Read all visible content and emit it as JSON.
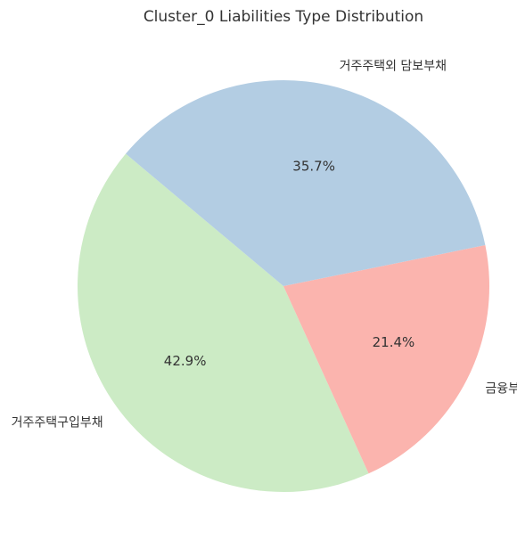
{
  "chart_data": {
    "type": "pie",
    "title": "Cluster_0 Liabilities Type Distribution",
    "start_angle_deg": 140,
    "direction": "counterclockwise",
    "slices": [
      {
        "label": "거주주택구입부채",
        "value": 42.9,
        "pct_label": "42.9%",
        "color": "#ccebc5"
      },
      {
        "label": "금융부채",
        "value": 21.4,
        "pct_label": "21.4%",
        "color": "#fbb4ae"
      },
      {
        "label": "거주주택외 담보부채",
        "value": 35.7,
        "pct_label": "35.7%",
        "color": "#b3cde3"
      }
    ]
  }
}
